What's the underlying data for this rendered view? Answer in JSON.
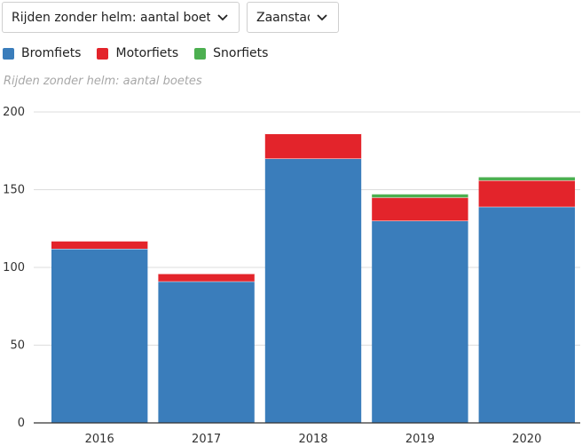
{
  "filters": {
    "metric": "Rijden zonder helm: aantal boetes",
    "city": "Zaanstad"
  },
  "colors": {
    "Bromfiets": "#3a7dbb",
    "Motorfiets": "#e3242b",
    "Snorfiets": "#4caf50"
  },
  "chart_data": {
    "type": "bar",
    "stacked": true,
    "title": "Rijden zonder helm: aantal boetes",
    "xlabel": "",
    "ylabel": "",
    "categories": [
      "2016",
      "2017",
      "2018",
      "2019",
      "2020"
    ],
    "series": [
      {
        "name": "Bromfiets",
        "values": [
          112,
          91,
          170,
          130,
          139
        ]
      },
      {
        "name": "Motorfiets",
        "values": [
          5,
          5,
          16,
          15,
          17
        ]
      },
      {
        "name": "Snorfiets",
        "values": [
          0,
          0,
          0,
          2,
          2
        ]
      }
    ],
    "ylim": [
      0,
      200
    ],
    "yticks": [
      "0",
      "50",
      "100",
      "150",
      "200"
    ],
    "grid": true,
    "legend_position": "top-left"
  }
}
